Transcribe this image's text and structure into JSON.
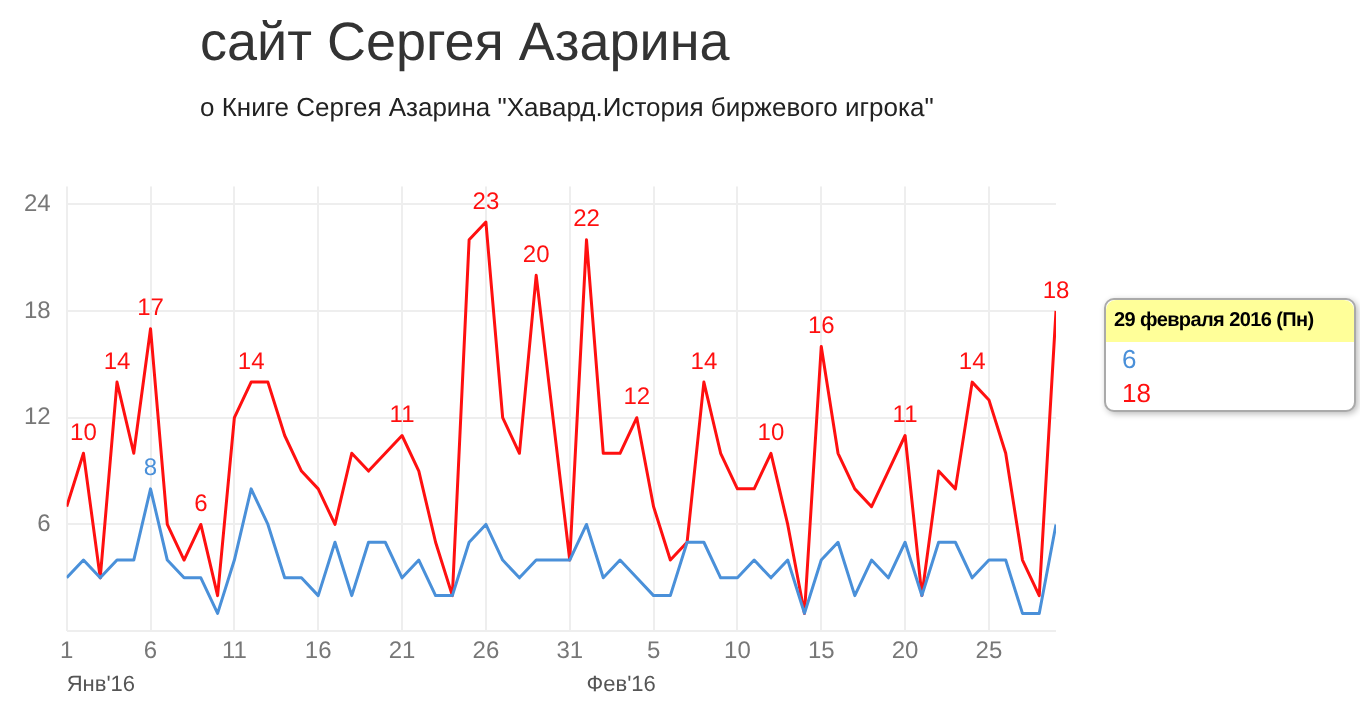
{
  "chart_data": {
    "type": "line",
    "title": "сайт Сергея Азарина",
    "subtitle": "о Книге Сергея Азарина \"Хавард.История биржевого игрока\"",
    "x": [
      "2016-01-01",
      "2016-01-02",
      "2016-01-03",
      "2016-01-04",
      "2016-01-05",
      "2016-01-06",
      "2016-01-07",
      "2016-01-08",
      "2016-01-09",
      "2016-01-10",
      "2016-01-11",
      "2016-01-12",
      "2016-01-13",
      "2016-01-14",
      "2016-01-15",
      "2016-01-16",
      "2016-01-17",
      "2016-01-18",
      "2016-01-19",
      "2016-01-20",
      "2016-01-21",
      "2016-01-22",
      "2016-01-23",
      "2016-01-24",
      "2016-01-25",
      "2016-01-26",
      "2016-01-27",
      "2016-01-28",
      "2016-01-29",
      "2016-01-30",
      "2016-01-31",
      "2016-02-01",
      "2016-02-02",
      "2016-02-03",
      "2016-02-04",
      "2016-02-05",
      "2016-02-06",
      "2016-02-07",
      "2016-02-08",
      "2016-02-09",
      "2016-02-10",
      "2016-02-11",
      "2016-02-12",
      "2016-02-13",
      "2016-02-14",
      "2016-02-15",
      "2016-02-16",
      "2016-02-17",
      "2016-02-18",
      "2016-02-19",
      "2016-02-20",
      "2016-02-21",
      "2016-02-22",
      "2016-02-23",
      "2016-02-24",
      "2016-02-25",
      "2016-02-26",
      "2016-02-27",
      "2016-02-28",
      "2016-02-29"
    ],
    "series": [
      {
        "color": "#4a90d9",
        "values": [
          3,
          4,
          3,
          4,
          4,
          8,
          4,
          3,
          3,
          1,
          4,
          8,
          6,
          3,
          3,
          2,
          5,
          2,
          5,
          5,
          3,
          4,
          2,
          2,
          5,
          6,
          4,
          3,
          4,
          4,
          4,
          6,
          3,
          4,
          3,
          2,
          2,
          5,
          5,
          3,
          3,
          4,
          3,
          4,
          1,
          4,
          5,
          2,
          4,
          3,
          5,
          2,
          5,
          5,
          3,
          4,
          4,
          1,
          1,
          6
        ],
        "value_labels": [
          null,
          null,
          null,
          null,
          null,
          "8",
          null,
          null,
          null,
          null,
          null,
          null,
          null,
          null,
          null,
          null,
          null,
          null,
          null,
          null,
          null,
          null,
          null,
          null,
          null,
          null,
          null,
          null,
          null,
          null,
          null,
          null,
          null,
          null,
          null,
          null,
          null,
          null,
          null,
          null,
          null,
          null,
          null,
          null,
          null,
          null,
          null,
          null,
          null,
          null,
          null,
          null,
          null,
          null,
          null,
          null,
          null,
          null,
          null,
          null
        ]
      },
      {
        "color": "#ff1010",
        "values": [
          7,
          10,
          3,
          14,
          10,
          17,
          6,
          4,
          6,
          2,
          12,
          14,
          14,
          11,
          9,
          8,
          6,
          10,
          9,
          10,
          11,
          9,
          5,
          2,
          22,
          23,
          12,
          10,
          20,
          12,
          4,
          22,
          10,
          10,
          12,
          7,
          4,
          5,
          14,
          10,
          8,
          8,
          10,
          6,
          1,
          16,
          10,
          8,
          7,
          9,
          11,
          2,
          9,
          8,
          14,
          13,
          10,
          4,
          2,
          18
        ],
        "value_labels": [
          null,
          "10",
          null,
          "14",
          null,
          "17",
          null,
          null,
          "6",
          null,
          null,
          "14",
          null,
          null,
          null,
          null,
          null,
          null,
          null,
          null,
          "11",
          null,
          null,
          null,
          null,
          "23",
          null,
          null,
          "20",
          null,
          null,
          "22",
          null,
          null,
          "12",
          null,
          null,
          null,
          "14",
          null,
          null,
          null,
          "10",
          null,
          null,
          "16",
          null,
          null,
          null,
          null,
          "11",
          null,
          null,
          null,
          "14",
          null,
          null,
          null,
          null,
          "18"
        ]
      }
    ],
    "xlim": [
      "2016-01-01",
      "2016-02-29"
    ],
    "xticks": [
      {
        "value": "2016-01-01",
        "label": "1"
      },
      {
        "value": "2016-01-06",
        "label": "6"
      },
      {
        "value": "2016-01-11",
        "label": "11"
      },
      {
        "value": "2016-01-16",
        "label": "16"
      },
      {
        "value": "2016-01-21",
        "label": "21"
      },
      {
        "value": "2016-01-26",
        "label": "26"
      },
      {
        "value": "2016-01-31",
        "label": "31"
      },
      {
        "value": "2016-02-05",
        "label": "5"
      },
      {
        "value": "2016-02-10",
        "label": "10"
      },
      {
        "value": "2016-02-15",
        "label": "15"
      },
      {
        "value": "2016-02-20",
        "label": "20"
      },
      {
        "value": "2016-02-25",
        "label": "25"
      }
    ],
    "ylim": [
      0,
      25
    ],
    "yticks": [
      {
        "value": 0,
        "label": null
      },
      6,
      12,
      18,
      24
    ],
    "grid": true,
    "marker": "none",
    "line_style": "solid",
    "annotations": [
      "Янв'16",
      "Фев'16",
      "29 февраля 2016 (Пн)",
      "6",
      "18"
    ]
  }
}
